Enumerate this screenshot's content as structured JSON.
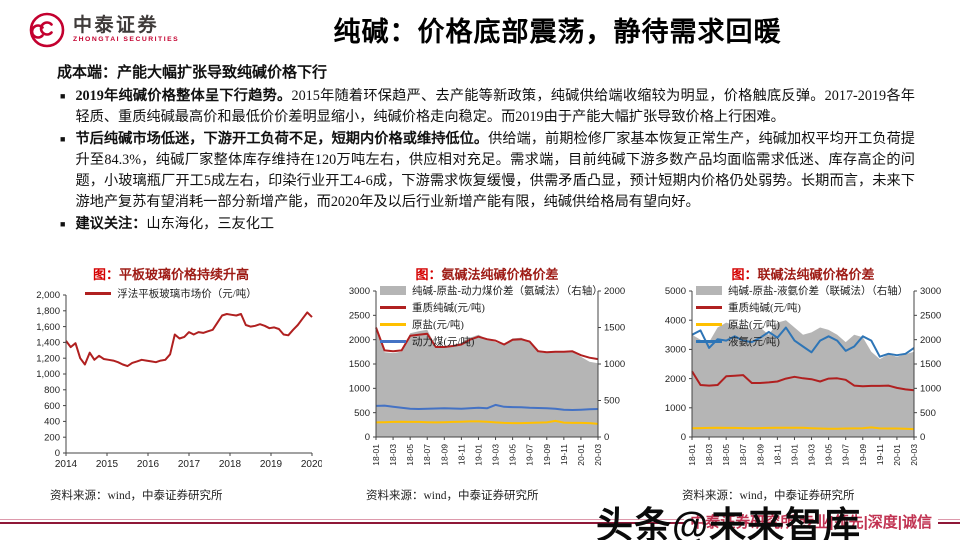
{
  "header": {
    "logo_cn": "中泰证券",
    "logo_en": "ZHONGTAI SECURITIES",
    "title": "纯碱：价格底部震荡，静待需求回暖"
  },
  "content": {
    "heading": "成本端：产能大幅扩张导致纯碱价格下行",
    "bullet_marker": "■",
    "bullets": [
      {
        "lead": "2019年纯碱价格整体呈下行趋势。",
        "text": "2015年随着环保趋严、去产能等新政策，纯碱供给端收缩较为明显，价格触底反弹。2017-2019各年轻质、重质纯碱最高价和最低价价差明显缩小，纯碱价格走向稳定。而2019由于产能大幅扩张导致价格上行困难。"
      },
      {
        "lead": "节后纯碱市场低迷，下游开工负荷不足，短期内价格或维持低位。",
        "text": "供给端，前期检修厂家基本恢复正常生产，纯碱加权平均开工负荷提升至84.3%，纯碱厂家整体库存维持在120万吨左右，供应相对充足。需求端，目前纯碱下游多数产品均面临需求低迷、库存高企的问题，小玻璃瓶厂开工5成左右，印染行业开工4-6成，下游需求恢复缓慢，供需矛盾凸显，预计短期内价格仍处弱势。长期而言，未来下游地产复苏有望消耗一部分新增产能，而2020年及以后行业新增产能有限，纯碱供给格局有望向好。"
      },
      {
        "lead": "建议关注：",
        "text": "山东海化，三友化工"
      }
    ]
  },
  "chart_data": [
    {
      "type": "line",
      "title_prefix": "图：",
      "title": "平板玻璃价格持续升高",
      "source": "资料来源：wind，中泰证券研究所",
      "legend_pos": "center",
      "x_ticks": [
        "2014",
        "2015",
        "2016",
        "2017",
        "2018",
        "2019",
        "2020"
      ],
      "rotate_x": false,
      "ylim_left": [
        0,
        2000
      ],
      "left_step": 200,
      "comma": true,
      "series": [
        {
          "name": "浮法平板玻璃市场价（元/吨）",
          "type": "line",
          "axis": "left",
          "color": "#b02020",
          "values": [
            1420,
            1340,
            1390,
            1200,
            1120,
            1270,
            1180,
            1230,
            1190,
            1180,
            1170,
            1150,
            1120,
            1100,
            1140,
            1160,
            1180,
            1170,
            1160,
            1150,
            1170,
            1180,
            1250,
            1500,
            1450,
            1470,
            1530,
            1500,
            1530,
            1520,
            1540,
            1560,
            1650,
            1740,
            1760,
            1750,
            1740,
            1760,
            1620,
            1600,
            1610,
            1630,
            1610,
            1580,
            1590,
            1570,
            1500,
            1490,
            1560,
            1620,
            1700,
            1780,
            1720
          ]
        }
      ]
    },
    {
      "type": "area+line",
      "title_prefix": "图：",
      "title": "氨碱法纯碱价格价差",
      "source": "资料来源：wind，中泰证券研究所",
      "legend_pos": "left",
      "x_ticks": [
        "18-01",
        "18-03",
        "18-05",
        "18-07",
        "18-09",
        "18-11",
        "19-01",
        "19-03",
        "19-05",
        "19-07",
        "19-09",
        "19-11",
        "20-01",
        "20-03"
      ],
      "rotate_x": true,
      "ylim_left": [
        0,
        3000
      ],
      "left_step": 500,
      "ylim_right": [
        0,
        2000
      ],
      "right_step": 500,
      "series": [
        {
          "name": "纯碱-原盐-动力煤价差（氨碱法）（右轴）",
          "type": "area",
          "axis": "right",
          "color": "#b5b5b5",
          "values": [
            1500,
            1160,
            1150,
            1170,
            1420,
            1450,
            1470,
            1240,
            1230,
            1260,
            1290,
            1360,
            1400,
            1340,
            1300,
            1260,
            1350,
            1360,
            1310,
            1160,
            1150,
            1160,
            1170,
            1160,
            1100,
            1030,
            1010
          ]
        },
        {
          "name": "重质纯碱(元/吨)",
          "type": "line",
          "axis": "left",
          "color": "#b02020",
          "values": [
            2250,
            1780,
            1760,
            1780,
            2080,
            2100,
            2120,
            1850,
            1850,
            1870,
            1900,
            2000,
            2060,
            2010,
            1980,
            1900,
            2000,
            2010,
            1960,
            1760,
            1740,
            1750,
            1750,
            1760,
            1680,
            1630,
            1600
          ]
        },
        {
          "name": "原盐(元/吨)",
          "type": "line",
          "axis": "left",
          "color": "#ffc000",
          "values": [
            300,
            305,
            310,
            315,
            310,
            310,
            305,
            300,
            305,
            310,
            315,
            320,
            320,
            315,
            300,
            290,
            285,
            285,
            290,
            295,
            300,
            330,
            295,
            290,
            290,
            285,
            270
          ]
        },
        {
          "name": "动力煤(元/吨)",
          "type": "line",
          "axis": "left",
          "color": "#4472c4",
          "values": [
            640,
            645,
            620,
            600,
            580,
            575,
            580,
            585,
            590,
            585,
            580,
            590,
            600,
            590,
            660,
            620,
            615,
            610,
            600,
            595,
            590,
            580,
            560,
            555,
            560,
            570,
            575
          ]
        }
      ]
    },
    {
      "type": "area+line",
      "title_prefix": "图：",
      "title": "联碱法纯碱价格价差",
      "source": "资料来源：wind，中泰证券研究所",
      "legend_pos": "left",
      "x_ticks": [
        "18-01",
        "18-03",
        "18-05",
        "18-07",
        "18-09",
        "18-11",
        "19-01",
        "19-03",
        "19-05",
        "19-07",
        "19-09",
        "19-11",
        "20-01",
        "20-03"
      ],
      "rotate_x": true,
      "ylim_left": [
        0,
        5000
      ],
      "left_step": 1000,
      "ylim_right": [
        0,
        3000
      ],
      "right_step": 500,
      "series": [
        {
          "name": "纯碱-原盐-液氨价差（联碱法）（右轴）",
          "type": "area",
          "axis": "right",
          "color": "#b5b5b5",
          "values": [
            2100,
            2000,
            1950,
            2250,
            2350,
            2300,
            2250,
            2200,
            2250,
            2100,
            2350,
            2400,
            2250,
            2100,
            2150,
            2250,
            2200,
            2100,
            1950,
            2100,
            2050,
            1750,
            1600,
            1700,
            1650,
            1700,
            1750
          ]
        },
        {
          "name": "重质纯碱(元/吨)",
          "type": "line",
          "axis": "left",
          "color": "#b02020",
          "values": [
            2250,
            1780,
            1760,
            1780,
            2080,
            2100,
            2120,
            1850,
            1850,
            1870,
            1900,
            2000,
            2060,
            2010,
            1980,
            1900,
            2000,
            2010,
            1960,
            1760,
            1740,
            1750,
            1750,
            1760,
            1680,
            1630,
            1600
          ]
        },
        {
          "name": "原盐(元/吨)",
          "type": "line",
          "axis": "left",
          "color": "#ffc000",
          "values": [
            300,
            305,
            310,
            315,
            310,
            310,
            305,
            300,
            305,
            310,
            315,
            320,
            320,
            315,
            300,
            290,
            285,
            285,
            290,
            295,
            300,
            330,
            295,
            290,
            290,
            285,
            270
          ]
        },
        {
          "name": "液氨(元/吨)",
          "type": "line",
          "axis": "left",
          "color": "#2e75b6",
          "values": [
            3500,
            3650,
            3050,
            3350,
            3300,
            3450,
            3300,
            3250,
            3400,
            3600,
            3400,
            3750,
            3300,
            3100,
            2900,
            3300,
            3450,
            3300,
            2950,
            3100,
            3450,
            3300,
            2750,
            2850,
            2800,
            2850,
            3050
          ]
        }
      ]
    }
  ],
  "footer": {
    "text": "中泰证券研究所 专业|领先|深度|诚信"
  },
  "watermark": "头条@未来智库",
  "colors": {
    "brand_red": "#c3002f",
    "chart_title_red": "#9e1b15",
    "line_red": "#b02020",
    "line_yellow": "#ffc000",
    "line_blue": "#4472c4",
    "area_gray": "#b5b5b5",
    "footer_red": "#c13352"
  }
}
